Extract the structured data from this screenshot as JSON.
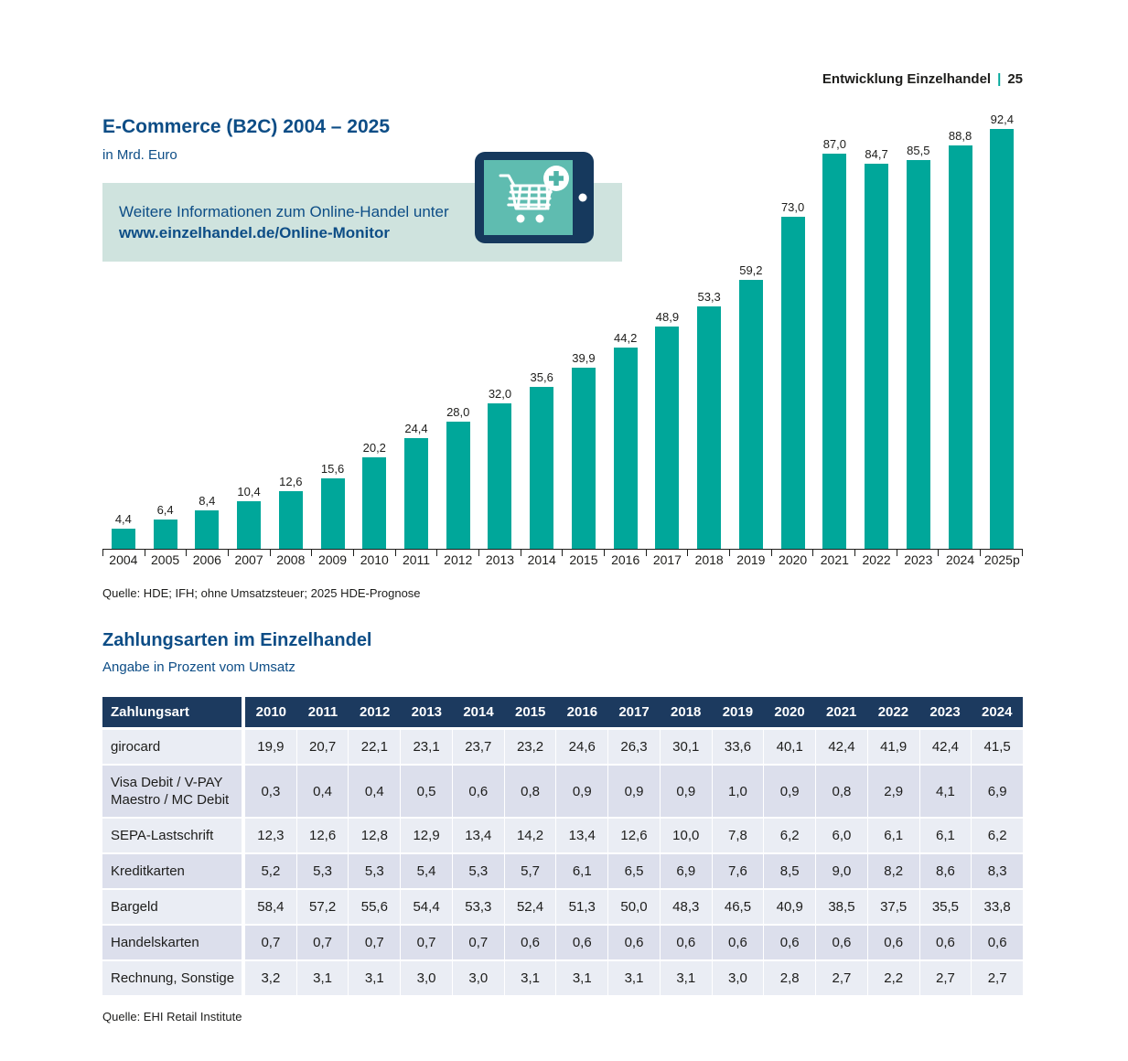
{
  "header": {
    "section": "Entwicklung Einzelhandel",
    "page_number": "25"
  },
  "infobox": {
    "line1": "Weitere Informationen zum Online-Handel unter",
    "line2": "www.einzelhandel.de/Online-Monitor"
  },
  "icons": {
    "tablet": "tablet-shopping-cart-plus-icon",
    "header_separator": "teal-vertical-bar"
  },
  "colors": {
    "accent_teal": "#00a79a",
    "heading_blue": "#0d4d86",
    "infobox_bg": "#cfe3de",
    "tablet_frame": "#16395d",
    "tablet_screen": "#5fbcb0",
    "table_header_bg": "#1c3a5f",
    "row_light": "#eaedf4",
    "row_dark": "#dcdfec"
  },
  "chart_data": [
    {
      "type": "bar",
      "title": "E-Commerce (B2C) 2004 – 2025",
      "subtitle": "in Mrd. Euro",
      "xlabel": "",
      "ylabel": "Mrd. Euro",
      "ylim": [
        0,
        95
      ],
      "grid": false,
      "legend": "none",
      "bar_color": "#00a79a",
      "categories": [
        "2004",
        "2005",
        "2006",
        "2007",
        "2008",
        "2009",
        "2010",
        "2011",
        "2012",
        "2013",
        "2014",
        "2015",
        "2016",
        "2017",
        "2018",
        "2019",
        "2020",
        "2021",
        "2022",
        "2023",
        "2024",
        "2025p"
      ],
      "values": [
        4.4,
        6.4,
        8.4,
        10.4,
        12.6,
        15.6,
        20.2,
        24.4,
        28.0,
        32.0,
        35.6,
        39.9,
        44.2,
        48.9,
        53.3,
        59.2,
        73.0,
        87.0,
        84.7,
        85.5,
        88.8,
        92.4
      ],
      "value_labels": [
        "4,4",
        "6,4",
        "8,4",
        "10,4",
        "12,6",
        "15,6",
        "20,2",
        "24,4",
        "28,0",
        "32,0",
        "35,6",
        "39,9",
        "44,2",
        "48,9",
        "53,3",
        "59,2",
        "73,0",
        "87,0",
        "84,7",
        "85,5",
        "88,8",
        "92,4"
      ],
      "source": "Quelle: HDE; IFH; ohne Umsatzsteuer; 2025 HDE-Prognose"
    },
    {
      "type": "table",
      "title": "Zahlungsarten im Einzelhandel",
      "subtitle": "Angabe in Prozent vom Umsatz",
      "columns": [
        "Zahlungsart",
        "2010",
        "2011",
        "2012",
        "2013",
        "2014",
        "2015",
        "2016",
        "2017",
        "2018",
        "2019",
        "2020",
        "2021",
        "2022",
        "2023",
        "2024"
      ],
      "rows": [
        {
          "label": "girocard",
          "values": [
            "19,9",
            "20,7",
            "22,1",
            "23,1",
            "23,7",
            "23,2",
            "24,6",
            "26,3",
            "30,1",
            "33,6",
            "40,1",
            "42,4",
            "41,9",
            "42,4",
            "41,5"
          ]
        },
        {
          "label": "Visa Debit / V-PAY Maestro / MC Debit",
          "values": [
            "0,3",
            "0,4",
            "0,4",
            "0,5",
            "0,6",
            "0,8",
            "0,9",
            "0,9",
            "0,9",
            "1,0",
            "0,9",
            "0,8",
            "2,9",
            "4,1",
            "6,9"
          ]
        },
        {
          "label": "SEPA-Lastschrift",
          "values": [
            "12,3",
            "12,6",
            "12,8",
            "12,9",
            "13,4",
            "14,2",
            "13,4",
            "12,6",
            "10,0",
            "7,8",
            "6,2",
            "6,0",
            "6,1",
            "6,1",
            "6,2"
          ]
        },
        {
          "label": "Kreditkarten",
          "values": [
            "5,2",
            "5,3",
            "5,3",
            "5,4",
            "5,3",
            "5,7",
            "6,1",
            "6,5",
            "6,9",
            "7,6",
            "8,5",
            "9,0",
            "8,2",
            "8,6",
            "8,3"
          ]
        },
        {
          "label": "Bargeld",
          "values": [
            "58,4",
            "57,2",
            "55,6",
            "54,4",
            "53,3",
            "52,4",
            "51,3",
            "50,0",
            "48,3",
            "46,5",
            "40,9",
            "38,5",
            "37,5",
            "35,5",
            "33,8"
          ]
        },
        {
          "label": "Handelskarten",
          "values": [
            "0,7",
            "0,7",
            "0,7",
            "0,7",
            "0,7",
            "0,6",
            "0,6",
            "0,6",
            "0,6",
            "0,6",
            "0,6",
            "0,6",
            "0,6",
            "0,6",
            "0,6"
          ]
        },
        {
          "label": "Rechnung, Sonstige",
          "values": [
            "3,2",
            "3,1",
            "3,1",
            "3,0",
            "3,0",
            "3,1",
            "3,1",
            "3,1",
            "3,1",
            "3,0",
            "2,8",
            "2,7",
            "2,2",
            "2,7",
            "2,7"
          ]
        }
      ],
      "source": "Quelle: EHI Retail Institute"
    }
  ]
}
